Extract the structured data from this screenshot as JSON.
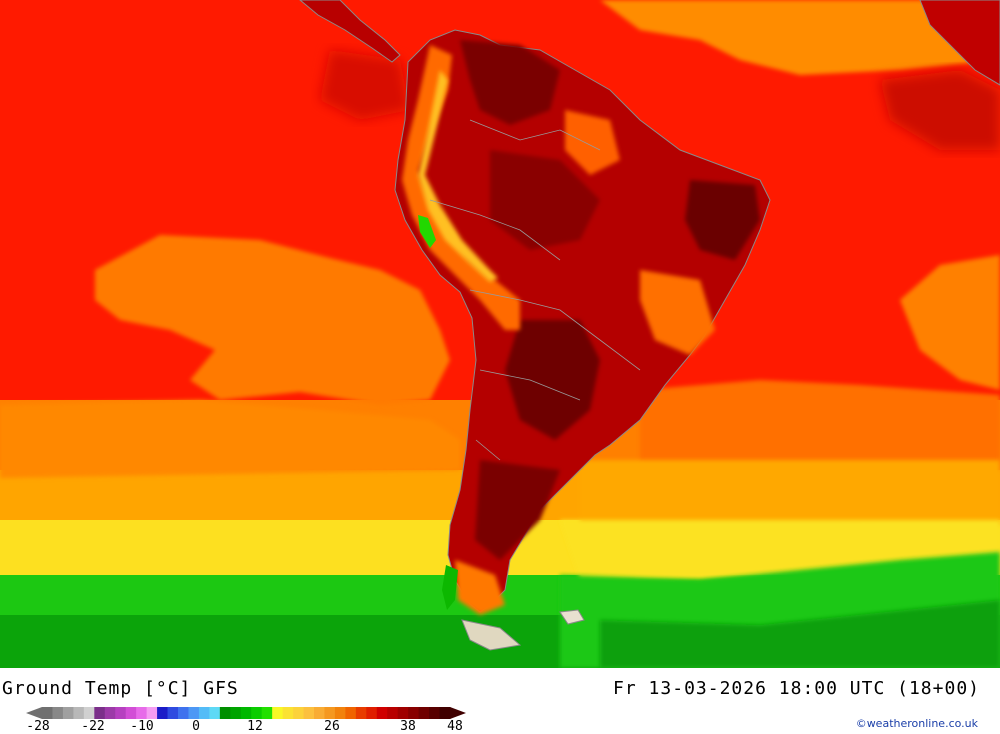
{
  "header": {
    "title_left": "Ground Temp [°C] GFS",
    "title_right": "Fr 13-03-2026 18:00 UTC (18+00)"
  },
  "legend": {
    "ticks": [
      "-28",
      "-22",
      "-10",
      "0",
      "12",
      "26",
      "38",
      "48"
    ],
    "colors": [
      "#707070",
      "#888888",
      "#a0a0a0",
      "#b8b8b8",
      "#d0d0d0",
      "#7b2f8a",
      "#9c3aa8",
      "#b640c0",
      "#d24ed6",
      "#e76be9",
      "#f59cf2",
      "#1c1cc8",
      "#2f4be0",
      "#3f72ee",
      "#4d98f5",
      "#53bcf7",
      "#5ed9f5",
      "#008f00",
      "#00a400",
      "#00b800",
      "#0acd00",
      "#22e000",
      "#f8f826",
      "#fbe232",
      "#fcd23a",
      "#fcc03e",
      "#f9ac34",
      "#f59820",
      "#f2820c",
      "#f06400",
      "#e83c00",
      "#e01e00",
      "#d00000",
      "#b80000",
      "#a00000",
      "#880000",
      "#700000",
      "#580000",
      "#400000"
    ]
  },
  "map": {
    "ocean_colors": {
      "hot": "#ff1a00",
      "warm_orange": "#ff8c00",
      "amber": "#ffb400",
      "yellow": "#fee010",
      "green": "#15c10a",
      "deep_green": "#069a06"
    },
    "land_colors": {
      "hot": "#b00000",
      "very_hot": "#7a0000",
      "highland": "#ff6a00"
    }
  },
  "credit": "©weatheronline.co.uk"
}
